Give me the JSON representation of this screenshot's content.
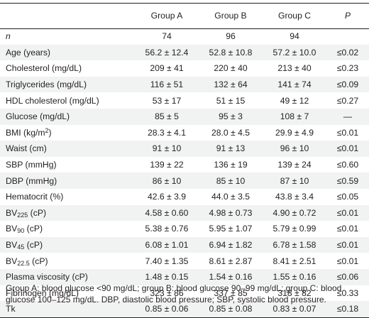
{
  "table": {
    "headers": [
      "Group A",
      "Group B",
      "Group C",
      "P"
    ],
    "rows": [
      {
        "label": "n",
        "label_style": "italic",
        "a": "74",
        "b": "96",
        "c": "94",
        "p": ""
      },
      {
        "label": "Age (years)",
        "a": "56.2 ± 12.4",
        "b": "52.8 ± 10.8",
        "c": "57.2 ± 10.0",
        "p": "≤0.02"
      },
      {
        "label": "Cholesterol (mg/dL)",
        "a": "209 ± 41",
        "b": "220 ± 40",
        "c": "213 ± 40",
        "p": "≤0.23"
      },
      {
        "label": "Triglycerides (mg/dL)",
        "a": "116 ± 51",
        "b": "132 ± 64",
        "c": "141 ± 74",
        "p": "≤0.09"
      },
      {
        "label": "HDL cholesterol (mg/dL)",
        "a": "53 ± 17",
        "b": "51 ± 15",
        "c": "49 ± 12",
        "p": "≤0.27"
      },
      {
        "label": "Glucose (mg/dL)",
        "a": "85 ± 5",
        "b": "95 ± 3",
        "c": "108 ± 7",
        "p": "—"
      },
      {
        "label": "BMI (kg/m",
        "label_sup": "2",
        "label_after": ")",
        "a": "28.3 ± 4.1",
        "b": "28.0 ± 4.5",
        "c": "29.9 ± 4.9",
        "p": "≤0.01"
      },
      {
        "label": "Waist (cm)",
        "a": "91 ± 10",
        "b": "91 ± 13",
        "c": "96 ± 10",
        "p": "≤0.01"
      },
      {
        "label": "SBP (mmHg)",
        "a": "139 ± 22",
        "b": "136 ± 19",
        "c": "139 ± 24",
        "p": "≤0.60"
      },
      {
        "label": "DBP (mmHg)",
        "a": "86 ± 10",
        "b": "85 ± 10",
        "c": "87 ± 10",
        "p": "≤0.59"
      },
      {
        "label": "Hematocrit (%)",
        "a": "42.6 ± 3.9",
        "b": "44.0 ± 3.5",
        "c": "43.8 ± 3.4",
        "p": "≤0.05"
      },
      {
        "label": "BV",
        "label_sub": "225",
        "label_after": " (cP)",
        "a": "4.58 ± 0.60",
        "b": "4.98 ± 0.73",
        "c": "4.90 ± 0.72",
        "p": "≤0.01"
      },
      {
        "label": "BV",
        "label_sub": "90",
        "label_after": " (cP)",
        "a": "5.38 ± 0.76",
        "b": "5.95 ± 1.07",
        "c": "5.79 ± 0.99",
        "p": "≤0.01"
      },
      {
        "label": "BV",
        "label_sub": "45",
        "label_after": " (cP)",
        "a": "6.08 ± 1.01",
        "b": "6.94 ± 1.82",
        "c": "6.78 ± 1.58",
        "p": "≤0.01"
      },
      {
        "label": "BV",
        "label_sub": "22.5",
        "label_after": " (cP)",
        "a": "7.40 ± 1.35",
        "b": "8.61 ± 2.87",
        "c": "8.41 ± 2.51",
        "p": "≤0.01"
      },
      {
        "label": "Plasma viscosity (cP)",
        "a": "1.48 ± 0.15",
        "b": "1.54 ± 0.16",
        "c": "1.55 ± 0.16",
        "p": "≤0.06"
      },
      {
        "label": "Fibrinogen (mg/dL)",
        "a": "323 ± 86",
        "b": "337 ± 85",
        "c": "318 ± 82",
        "p": "≤0.33"
      },
      {
        "label": "Tk",
        "a": "0.85 ± 0.06",
        "b": "0.85 ± 0.08",
        "c": "0.83 ± 0.07",
        "p": "≤0.18"
      }
    ]
  },
  "footnote": {
    "part1": "Group A: blood glucose ",
    "lt": "<",
    "part2": "90 mg/dL; group B: blood glucose 90–99 mg/dL; group C: blood glucose 100–125 mg/dL. DBP, diastolic blood pressure; SBP, systolic blood pressure."
  },
  "colors": {
    "stripe": "#f1f2f2",
    "text": "#231f20",
    "rule": "#231f20"
  }
}
